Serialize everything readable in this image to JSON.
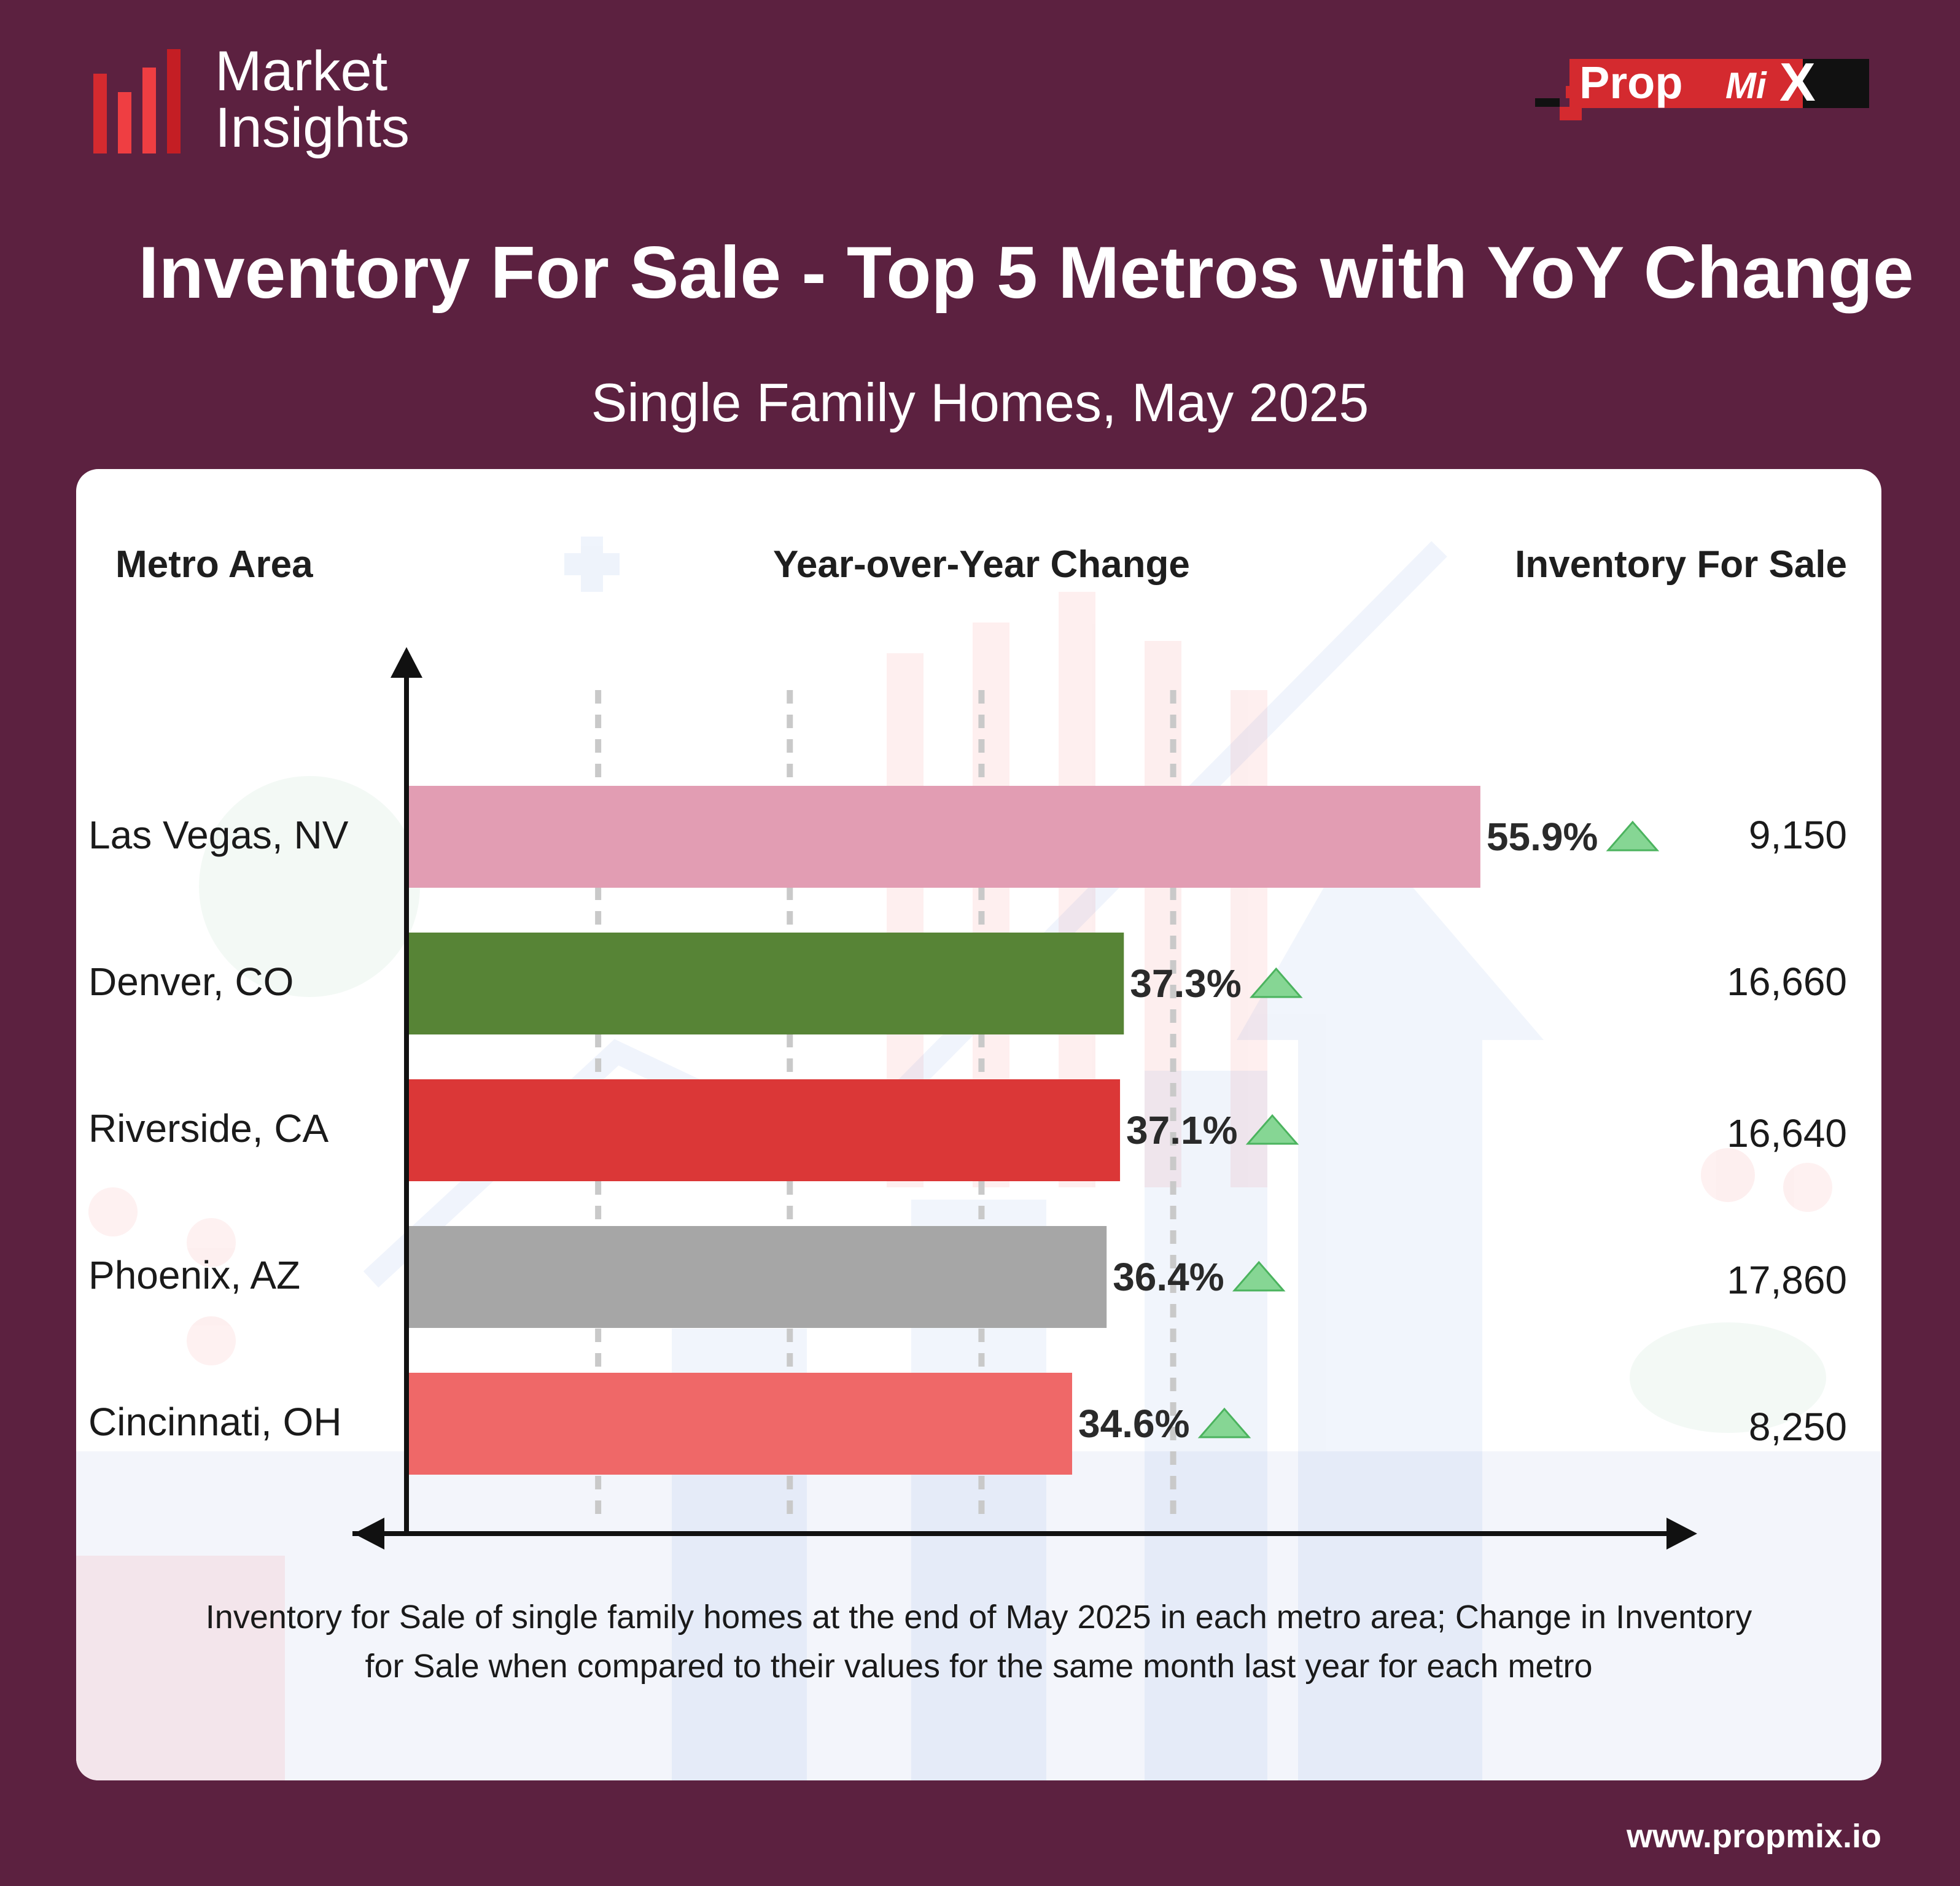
{
  "header": {
    "logo_line1": "Market",
    "logo_line2": "Insights",
    "brand_main": "Prop",
    "brand_mi": "Mi",
    "brand_x": "X"
  },
  "title": "Inventory For Sale - Top 5 Metros with YoY Change",
  "subtitle": "Single Family Homes, May 2025",
  "columns": {
    "metro": "Metro Area",
    "yoy": "Year-over-Year Change",
    "inventory": "Inventory For Sale"
  },
  "chart_data": {
    "type": "bar",
    "orientation": "horizontal",
    "categories": [
      "Las Vegas, NV",
      "Denver, CO",
      "Riverside, CA",
      "Phoenix, AZ",
      "Cincinnati, OH"
    ],
    "values": [
      55.9,
      37.3,
      37.1,
      36.4,
      34.6
    ],
    "value_labels": [
      "55.9%",
      "37.3%",
      "37.1%",
      "36.4%",
      "34.6%"
    ],
    "inventory_values": [
      9150,
      16660,
      16640,
      17860,
      8250
    ],
    "inventory_labels": [
      "9,150",
      "16,660",
      "16,640",
      "17,860",
      "8,250"
    ],
    "bar_colors": [
      "#e29db3",
      "#578436",
      "#db3737",
      "#a6a6a6",
      "#ef6868"
    ],
    "trend_icon": "up-triangle-icon",
    "trend_color": "#86d694",
    "xlim": [
      0,
      70
    ],
    "grid": "dashed-vertical"
  },
  "footnote": "Inventory for Sale of single family homes at the end of May 2025 in each metro area; Change in Inventory for Sale when compared to their values for the same month last year for each metro",
  "website": "www.propmix.io"
}
